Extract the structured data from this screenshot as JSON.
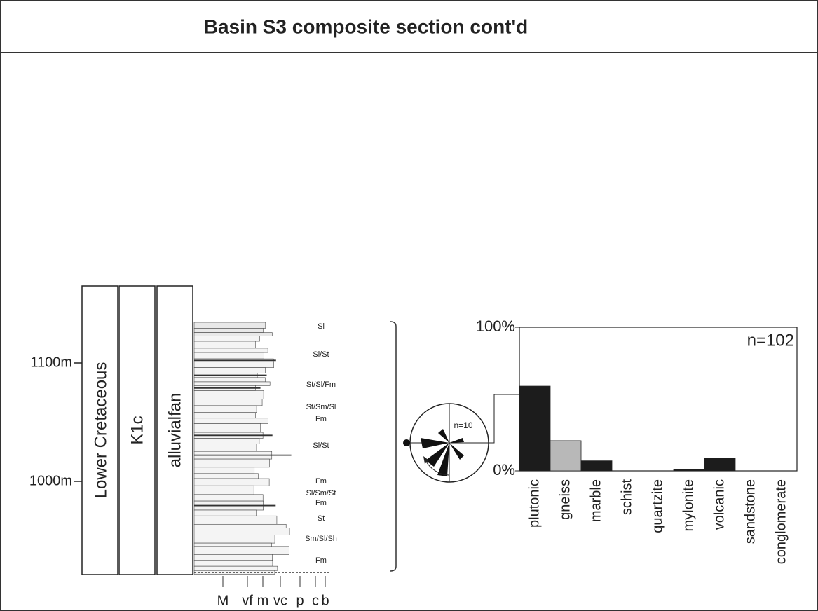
{
  "title": "Basin S3 composite section cont'd",
  "column": {
    "labels": [
      "Lower Cretaceous",
      "K1c",
      "alluvialfan"
    ],
    "depth_ticks": [
      {
        "value": 1100,
        "label": "1100m"
      },
      {
        "value": 1000,
        "label": "1000m"
      }
    ],
    "facies": [
      "Sl",
      "Sl/St",
      "St/Sl/Fm",
      "St/Sm/Sl",
      "Fm",
      "Sl/St",
      "Fm",
      "Sl/Sm/St",
      "Fm",
      "St",
      "Sm/Sl/Sh",
      "Fm"
    ],
    "grain_sizes": [
      "M",
      "vf",
      "m",
      "vc",
      "p",
      "c",
      "b"
    ]
  },
  "rose": {
    "label": "n=10"
  },
  "chart_data": {
    "type": "bar",
    "annotation": "n=102",
    "categories": [
      "plutonic",
      "gneiss",
      "marble",
      "schist",
      "quartzite",
      "mylonite",
      "volcanic",
      "sandstone",
      "conglomerate"
    ],
    "values": [
      59,
      21,
      7,
      0,
      0,
      1,
      9,
      0,
      0
    ],
    "colors": [
      "#1c1c1c",
      "#b8b8b8",
      "#1c1c1c",
      "#1c1c1c",
      "#1c1c1c",
      "#1c1c1c",
      "#1c1c1c",
      "#1c1c1c",
      "#1c1c1c"
    ],
    "ylim": [
      0,
      100
    ],
    "yticks": [
      {
        "value": 0,
        "label": "0%"
      },
      {
        "value": 100,
        "label": "100%"
      }
    ]
  }
}
